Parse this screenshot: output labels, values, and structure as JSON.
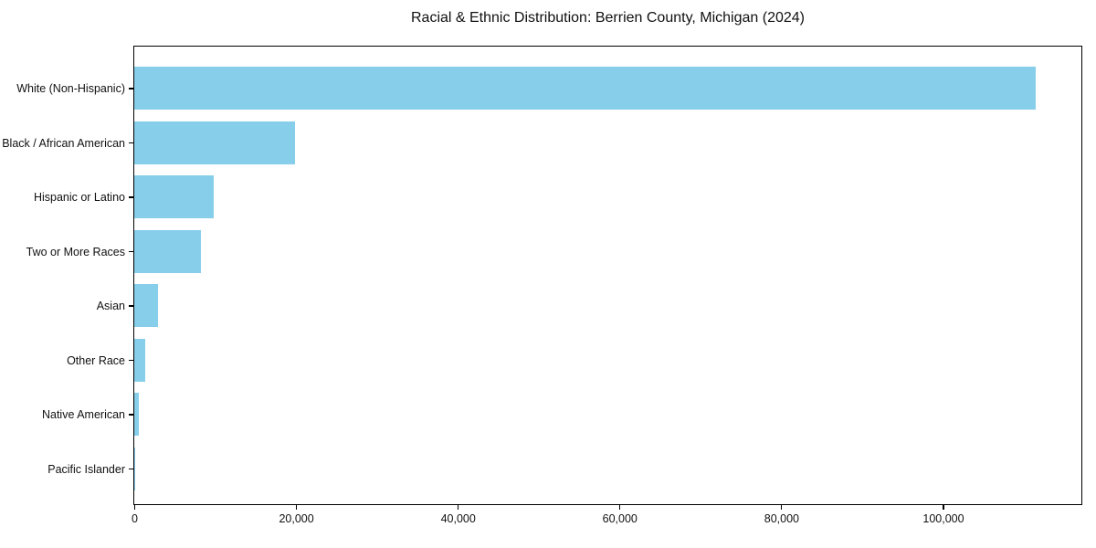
{
  "chart_data": {
    "type": "bar",
    "orientation": "horizontal",
    "title": "Racial & Ethnic Distribution: Berrien County, Michigan (2024)",
    "categories": [
      "White (Non-Hispanic)",
      "Black / African American",
      "Hispanic or Latino",
      "Two or More Races",
      "Asian",
      "Other Race",
      "Native American",
      "Pacific Islander"
    ],
    "values": [
      111500,
      19900,
      9800,
      8200,
      2900,
      1300,
      550,
      40
    ],
    "xlabel": "",
    "ylabel": "",
    "xlim": [
      0,
      117000
    ],
    "xticks": [
      0,
      20000,
      40000,
      60000,
      80000,
      100000
    ],
    "xtick_labels": [
      "0",
      "20,000",
      "40,000",
      "60,000",
      "80,000",
      "100,000"
    ],
    "bar_color": "#87CEEB",
    "frame_color": "#000000",
    "text_color": "#111111",
    "grid": false,
    "legend": null
  }
}
